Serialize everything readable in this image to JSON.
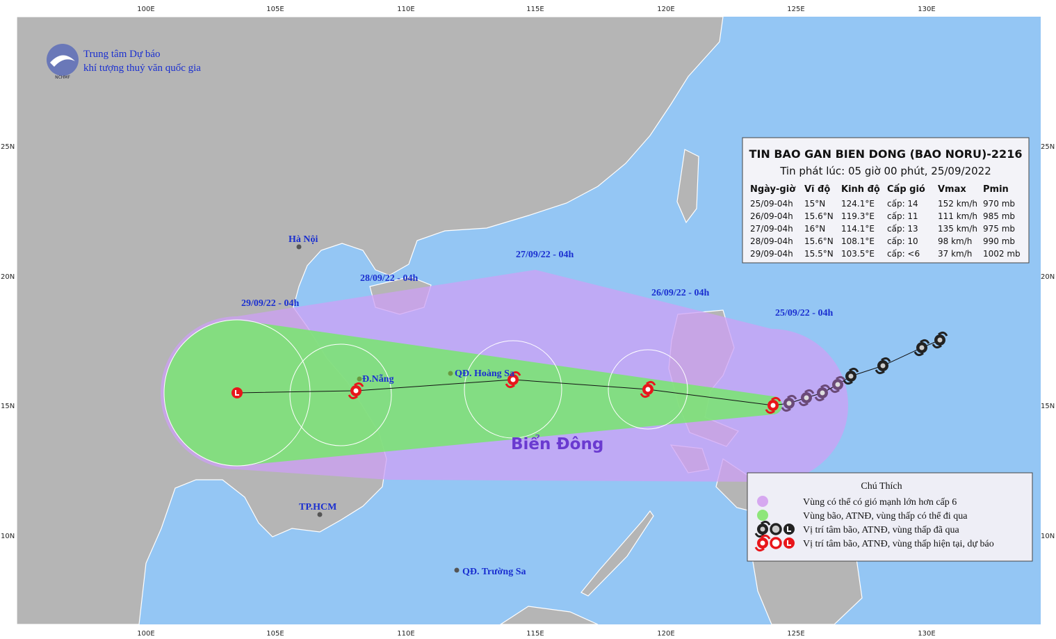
{
  "header": {
    "org_line1": "Trung tâm Dự báo",
    "org_line2": "khí tượng thuỷ văn quốc gia",
    "logo_text": "NCHMF"
  },
  "grid": {
    "lon_labels": [
      "100E",
      "105E",
      "110E",
      "115E",
      "120E",
      "125E",
      "130E"
    ],
    "lat_labels": [
      "25N",
      "20N",
      "15N",
      "10N"
    ]
  },
  "places": [
    "Hà Nội",
    "Đ.Nẵng",
    "QĐ. Hoàng Sa",
    "TP.HCM",
    "QĐ. Trường Sa"
  ],
  "sea_label": "Biển Đông",
  "time_labels": [
    "29/09/22 - 04h",
    "28/09/22 - 04h",
    "27/09/22 - 04h",
    "26/09/22 - 04h",
    "25/09/22 - 04h"
  ],
  "bulletin": {
    "title": "TIN BAO GAN BIEN DONG (BAO NORU)-2216",
    "subtitle": "Tin phát lúc: 05 giờ 00 phút, 25/09/2022",
    "columns": [
      "Ngày-giờ",
      "Vĩ độ",
      "Kinh độ",
      "Cấp gió",
      "Vmax",
      "Pmin"
    ],
    "rows": [
      [
        "25/09-04h",
        "15°N",
        "124.1°E",
        "cấp: 14",
        "152 km/h",
        "970 mb"
      ],
      [
        "26/09-04h",
        "15.6°N",
        "119.3°E",
        "cấp: 11",
        "111 km/h",
        "985 mb"
      ],
      [
        "27/09-04h",
        "16°N",
        "114.1°E",
        "cấp: 13",
        "135 km/h",
        "975 mb"
      ],
      [
        "28/09-04h",
        "15.6°N",
        "108.1°E",
        "cấp: 10",
        "98 km/h",
        "990 mb"
      ],
      [
        "29/09-04h",
        "15.5°N",
        "103.5°E",
        "cấp: <6",
        "37 km/h",
        "1002 mb"
      ]
    ]
  },
  "legend": {
    "title": "Chú Thích",
    "items": [
      "Vùng có thể có gió mạnh lớn hơn cấp 6",
      "Vùng bão, ATNĐ, vùng thấp có thể đi qua",
      "Vị trí tâm bão, ATNĐ, vùng thấp đã qua",
      "Vị trí tâm bão, ATNĐ, vùng thấp hiện tại, dự báo"
    ]
  }
}
